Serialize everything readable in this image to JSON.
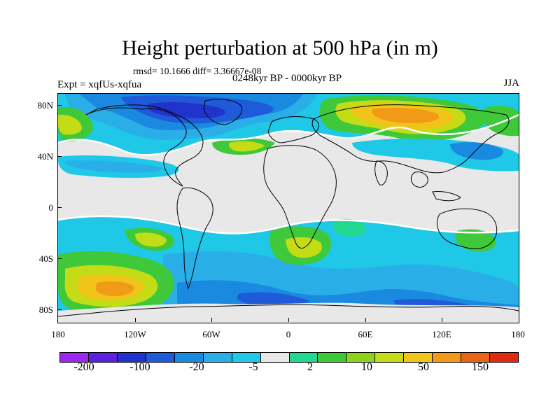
{
  "title": "Height perturbation at 500 hPa (in m)",
  "stats": "rmsd= 10.1666 diff= 3.36667e-08",
  "experiment": "Expt = xqfUs-xqfua",
  "period": "0248kyr BP - 0000kyr BP",
  "season": "JJA",
  "y_axis_ticks": [
    "80N",
    "40N",
    "0",
    "40S",
    "80S"
  ],
  "x_axis_ticks": [
    "180",
    "120W",
    "60W",
    "0",
    "60E",
    "120E",
    "180"
  ],
  "colorbar": {
    "labels": [
      "-200",
      "-100",
      "-20",
      "-5",
      "2",
      "10",
      "50",
      "150"
    ],
    "colors": [
      "#9a28ee",
      "#5a1fe0",
      "#2233cc",
      "#1f5ad9",
      "#1a8ae0",
      "#2aaee8",
      "#1ec8e6",
      "#e8e8e8",
      "#22d890",
      "#3ec83a",
      "#8ed21e",
      "#c4dc16",
      "#f0c418",
      "#f09a18",
      "#ea6418",
      "#e02a14"
    ]
  }
}
